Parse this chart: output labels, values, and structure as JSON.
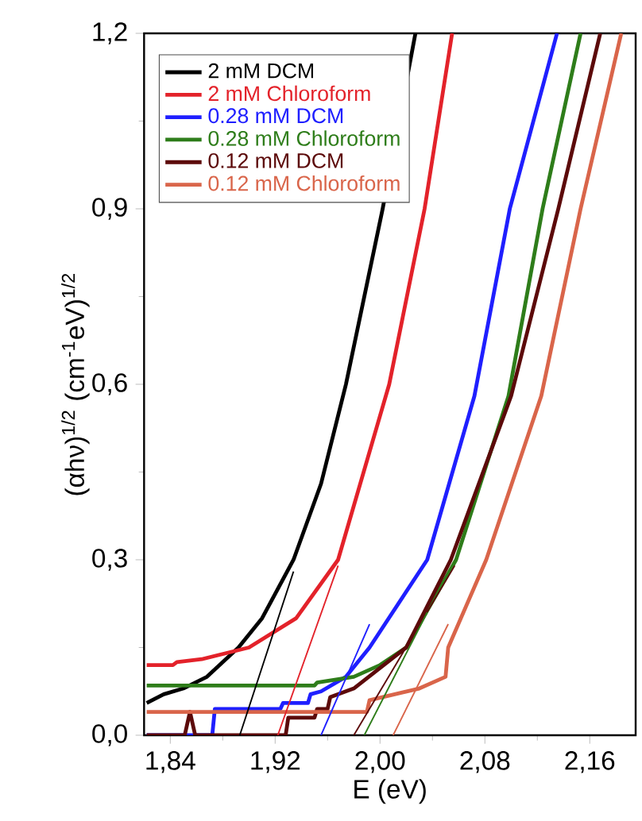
{
  "chart_data": {
    "type": "line",
    "xlabel": "E (eV)",
    "ylabel": "(αhν)$^{1/2}$ (cm$^{-1}$eV)$^{1/2}$",
    "xlim": [
      1.82,
      2.195
    ],
    "ylim": [
      0,
      1.2
    ],
    "xticks": [
      {
        "value": 1.84,
        "label": "1,84"
      },
      {
        "value": 1.92,
        "label": "1,92"
      },
      {
        "value": 2.0,
        "label": "2,00"
      },
      {
        "value": 2.08,
        "label": "2,08"
      },
      {
        "value": 2.16,
        "label": "2,16"
      }
    ],
    "yticks": [
      {
        "value": 0,
        "label": "0,0"
      },
      {
        "value": 0.3,
        "label": "0,3"
      },
      {
        "value": 0.6,
        "label": "0,6"
      },
      {
        "value": 0.9,
        "label": "0,9"
      },
      {
        "value": 1.2,
        "label": "1,2"
      }
    ],
    "legend": "top left",
    "grid": false,
    "marker": "none",
    "line_style": "solid",
    "series": [
      {
        "name": "2 mM DCM",
        "color": "#000000",
        "x": [
          1.822,
          1.835,
          1.85,
          1.868,
          1.892,
          1.91,
          1.934,
          1.955,
          1.974,
          2.002,
          2.027
        ],
        "values": [
          0.055,
          0.07,
          0.08,
          0.1,
          0.15,
          0.2,
          0.3,
          0.43,
          0.6,
          0.9,
          1.2
        ]
      },
      {
        "name": "2 mM Chloroform",
        "color": "#e3222a",
        "x": [
          1.822,
          1.842,
          1.845,
          1.864,
          1.9,
          1.936,
          1.968,
          2.007,
          2.034,
          2.055
        ],
        "values": [
          0.12,
          0.12,
          0.125,
          0.13,
          0.15,
          0.2,
          0.3,
          0.6,
          0.9,
          1.2
        ]
      },
      {
        "name": "0.28 mM DCM",
        "color": "#1f1fff",
        "x": [
          1.822,
          1.872,
          1.874,
          1.924,
          1.926,
          1.945,
          1.947,
          1.955,
          1.974,
          1.992,
          2.036,
          2.072,
          2.099,
          2.135
        ],
        "values": [
          0,
          0,
          0.045,
          0.045,
          0.055,
          0.055,
          0.07,
          0.075,
          0.1,
          0.15,
          0.3,
          0.58,
          0.9,
          1.2
        ]
      },
      {
        "name": "0.28 mM Chloroform",
        "color": "#2e7d1a",
        "x": [
          1.822,
          1.95,
          1.952,
          1.98,
          2.0,
          2.02,
          2.058,
          2.098,
          2.124,
          2.153
        ],
        "values": [
          0.085,
          0.085,
          0.09,
          0.1,
          0.12,
          0.15,
          0.3,
          0.58,
          0.9,
          1.2
        ]
      },
      {
        "name": "0.12 mM DCM",
        "color": "#5c0a0a",
        "x": [
          1.822,
          1.851,
          1.855,
          1.859,
          1.928,
          1.93,
          1.95,
          1.952,
          1.96,
          1.962,
          1.98,
          2.02,
          2.054,
          2.1,
          2.136,
          2.168
        ],
        "values": [
          0,
          0,
          0.04,
          0,
          0,
          0.03,
          0.03,
          0.045,
          0.045,
          0.065,
          0.08,
          0.15,
          0.3,
          0.58,
          0.9,
          1.2
        ]
      },
      {
        "name": "0.12 mM Chloroform",
        "color": "#d9654a",
        "x": [
          1.822,
          1.99,
          1.992,
          2.03,
          2.05,
          2.052,
          2.081,
          2.123,
          2.153,
          2.184
        ],
        "values": [
          0.04,
          0.04,
          0.06,
          0.08,
          0.1,
          0.15,
          0.3,
          0.58,
          0.9,
          1.2
        ]
      },
      {
        "color": "#000000",
        "x": [
          1.934,
          1.893
        ],
        "values": [
          0.28,
          0
        ]
      },
      {
        "color": "#e3222a",
        "x": [
          1.968,
          1.922
        ],
        "values": [
          0.29,
          0
        ]
      },
      {
        "color": "#1f1fff",
        "x": [
          1.992,
          1.955
        ],
        "values": [
          0.19,
          0
        ]
      },
      {
        "color": "#5c0a0a",
        "x": [
          2.057,
          1.98
        ],
        "values": [
          0.29,
          0
        ]
      },
      {
        "color": "#2e7d1a",
        "x": [
          2.036,
          1.988
        ],
        "values": [
          0.21,
          0
        ]
      },
      {
        "color": "#d9654a",
        "x": [
          2.052,
          2.01
        ],
        "values": [
          0.19,
          0
        ]
      }
    ]
  }
}
